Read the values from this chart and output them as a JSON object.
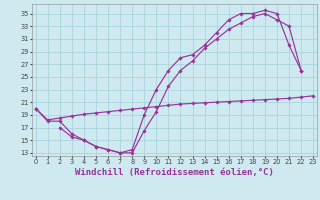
{
  "background_color": "#ceeaf0",
  "grid_color": "#aad4dc",
  "line_color": "#993399",
  "xlabel": "Windchill (Refroidissement éolien,°C)",
  "xlabel_fontsize": 6.5,
  "ylabel_ticks": [
    13,
    15,
    17,
    19,
    21,
    23,
    25,
    27,
    29,
    31,
    33,
    35
  ],
  "xticks": [
    0,
    1,
    2,
    3,
    4,
    5,
    6,
    7,
    8,
    9,
    10,
    11,
    12,
    13,
    14,
    15,
    16,
    17,
    18,
    19,
    20,
    21,
    22,
    23
  ],
  "xlim": [
    -0.3,
    23.3
  ],
  "ylim": [
    12.5,
    36.5
  ],
  "line1_x": [
    0,
    1,
    2,
    3,
    4,
    5,
    6,
    7,
    8,
    9,
    10,
    11,
    12,
    13,
    14,
    15,
    16,
    17,
    18,
    19,
    20,
    21,
    22
  ],
  "line1_y": [
    20,
    18,
    18,
    16,
    15,
    14,
    13.5,
    13,
    13.5,
    19,
    23,
    26,
    28,
    28.5,
    30,
    32,
    34,
    35,
    35,
    35.5,
    35,
    30,
    26
  ],
  "line2_x": [
    2,
    3,
    4,
    5,
    6,
    7,
    8,
    9,
    10,
    11,
    12,
    13,
    14,
    15,
    16,
    17,
    18,
    19,
    20,
    21,
    22
  ],
  "line2_y": [
    17,
    15.5,
    15,
    14,
    13.5,
    13,
    13,
    16.5,
    19.5,
    23.5,
    26,
    27.5,
    29.5,
    31,
    32.5,
    33.5,
    34.5,
    35,
    34,
    33,
    26
  ],
  "line3_x": [
    0,
    1,
    2,
    3,
    4,
    5,
    6,
    7,
    8,
    9,
    10,
    11,
    12,
    13,
    14,
    15,
    16,
    17,
    18,
    19,
    20,
    21,
    22,
    23
  ],
  "line3_y": [
    20,
    18.2,
    18.5,
    18.8,
    19.1,
    19.3,
    19.5,
    19.7,
    19.9,
    20.1,
    20.3,
    20.5,
    20.7,
    20.8,
    20.9,
    21.0,
    21.1,
    21.2,
    21.3,
    21.4,
    21.5,
    21.6,
    21.8,
    22
  ]
}
